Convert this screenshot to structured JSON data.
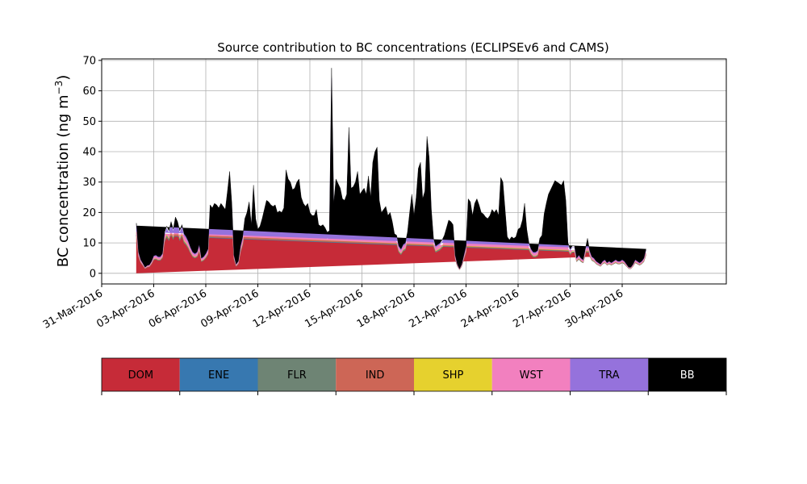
{
  "chart_data": {
    "type": "area",
    "stacked": true,
    "title": "Source contribution to BC concentrations (ECLIPSEv6 and CAMS)",
    "xlabel": "",
    "ylabel": "BC concentration (ng m",
    "ylabel_sup": "−3",
    "ylabel_close": ")",
    "xlim": [
      "2016-03-31",
      "2016-05-06"
    ],
    "ylim": [
      -3.5,
      70.5
    ],
    "y_ticks": [
      0,
      10,
      20,
      30,
      40,
      50,
      60,
      70
    ],
    "x_ticks": [
      {
        "date": "2016-03-31",
        "label": "31-Mar-2016"
      },
      {
        "date": "2016-04-03",
        "label": "03-Apr-2016"
      },
      {
        "date": "2016-04-06",
        "label": "06-Apr-2016"
      },
      {
        "date": "2016-04-09",
        "label": "09-Apr-2016"
      },
      {
        "date": "2016-04-12",
        "label": "12-Apr-2016"
      },
      {
        "date": "2016-04-15",
        "label": "15-Apr-2016"
      },
      {
        "date": "2016-04-18",
        "label": "18-Apr-2016"
      },
      {
        "date": "2016-04-21",
        "label": "21-Apr-2016"
      },
      {
        "date": "2016-04-24",
        "label": "24-Apr-2016"
      },
      {
        "date": "2016-04-27",
        "label": "27-Apr-2016"
      },
      {
        "date": "2016-04-30",
        "label": "30-Apr-2016"
      }
    ],
    "grid": true,
    "legend_position": "below",
    "x": [
      "2016-04-02 00:00",
      "2016-04-02 03:00",
      "2016-04-02 06:00",
      "2016-04-02 09:00",
      "2016-04-02 12:00",
      "2016-04-02 15:00",
      "2016-04-02 18:00",
      "2016-04-02 21:00",
      "2016-04-03 00:00",
      "2016-04-03 03:00",
      "2016-04-03 06:00",
      "2016-04-03 09:00",
      "2016-04-03 12:00",
      "2016-04-03 15:00",
      "2016-04-03 18:00",
      "2016-04-03 21:00",
      "2016-04-04 00:00",
      "2016-04-04 03:00",
      "2016-04-04 06:00",
      "2016-04-04 09:00",
      "2016-04-04 12:00",
      "2016-04-04 15:00",
      "2016-04-04 18:00",
      "2016-04-04 21:00",
      "2016-04-05 00:00",
      "2016-04-05 03:00",
      "2016-04-05 06:00",
      "2016-04-05 09:00",
      "2016-04-05 12:00",
      "2016-04-05 15:00",
      "2016-04-05 18:00",
      "2016-04-05 21:00",
      "2016-04-06 00:00",
      "2016-04-06 03:00",
      "2016-04-06 06:00",
      "2016-04-06 09:00",
      "2016-04-06 12:00",
      "2016-04-06 15:00",
      "2016-04-06 18:00",
      "2016-04-06 21:00",
      "2016-04-07 00:00",
      "2016-04-07 03:00",
      "2016-04-07 06:00",
      "2016-04-07 09:00",
      "2016-04-07 12:00",
      "2016-04-07 15:00",
      "2016-04-07 18:00",
      "2016-04-07 21:00",
      "2016-04-08 00:00",
      "2016-04-08 03:00",
      "2016-04-08 06:00",
      "2016-04-08 09:00",
      "2016-04-08 12:00",
      "2016-04-08 15:00",
      "2016-04-08 18:00",
      "2016-04-08 21:00",
      "2016-04-09 00:00",
      "2016-04-09 03:00",
      "2016-04-09 06:00",
      "2016-04-09 09:00",
      "2016-04-09 12:00",
      "2016-04-09 15:00",
      "2016-04-09 18:00",
      "2016-04-09 21:00",
      "2016-04-10 00:00",
      "2016-04-10 03:00",
      "2016-04-10 06:00",
      "2016-04-10 09:00",
      "2016-04-10 12:00",
      "2016-04-10 15:00",
      "2016-04-10 18:00",
      "2016-04-10 21:00",
      "2016-04-11 00:00",
      "2016-04-11 03:00",
      "2016-04-11 06:00",
      "2016-04-11 09:00",
      "2016-04-11 12:00",
      "2016-04-11 15:00",
      "2016-04-11 18:00",
      "2016-04-11 21:00",
      "2016-04-12 00:00",
      "2016-04-12 03:00",
      "2016-04-12 06:00",
      "2016-04-12 09:00",
      "2016-04-12 12:00",
      "2016-04-12 15:00",
      "2016-04-12 18:00",
      "2016-04-12 21:00",
      "2016-04-13 00:00",
      "2016-04-13 03:00",
      "2016-04-13 06:00",
      "2016-04-13 09:00",
      "2016-04-13 12:00",
      "2016-04-13 15:00",
      "2016-04-13 18:00",
      "2016-04-13 21:00",
      "2016-04-14 00:00",
      "2016-04-14 03:00",
      "2016-04-14 06:00",
      "2016-04-14 09:00",
      "2016-04-14 12:00",
      "2016-04-14 15:00",
      "2016-04-14 18:00",
      "2016-04-14 21:00",
      "2016-04-15 00:00",
      "2016-04-15 03:00",
      "2016-04-15 06:00",
      "2016-04-15 09:00",
      "2016-04-15 12:00",
      "2016-04-15 15:00",
      "2016-04-15 18:00",
      "2016-04-15 21:00",
      "2016-04-16 00:00",
      "2016-04-16 03:00",
      "2016-04-16 06:00",
      "2016-04-16 09:00",
      "2016-04-16 12:00",
      "2016-04-16 15:00",
      "2016-04-16 18:00",
      "2016-04-16 21:00",
      "2016-04-17 00:00",
      "2016-04-17 03:00",
      "2016-04-17 06:00",
      "2016-04-17 09:00",
      "2016-04-17 12:00",
      "2016-04-17 15:00",
      "2016-04-17 18:00",
      "2016-04-17 21:00",
      "2016-04-18 00:00",
      "2016-04-18 03:00",
      "2016-04-18 06:00",
      "2016-04-18 09:00",
      "2016-04-18 12:00",
      "2016-04-18 15:00",
      "2016-04-18 18:00",
      "2016-04-18 21:00",
      "2016-04-19 00:00",
      "2016-04-19 03:00",
      "2016-04-19 06:00",
      "2016-04-19 09:00",
      "2016-04-19 12:00",
      "2016-04-19 15:00",
      "2016-04-19 18:00",
      "2016-04-19 21:00",
      "2016-04-20 00:00",
      "2016-04-20 03:00",
      "2016-04-20 06:00",
      "2016-04-20 09:00",
      "2016-04-20 12:00",
      "2016-04-20 15:00",
      "2016-04-20 18:00",
      "2016-04-20 21:00",
      "2016-04-21 00:00",
      "2016-04-21 03:00",
      "2016-04-21 06:00",
      "2016-04-21 09:00",
      "2016-04-21 12:00",
      "2016-04-21 15:00",
      "2016-04-21 18:00",
      "2016-04-21 21:00",
      "2016-04-22 00:00",
      "2016-04-22 03:00",
      "2016-04-22 06:00",
      "2016-04-22 09:00",
      "2016-04-22 12:00",
      "2016-04-22 15:00",
      "2016-04-22 18:00",
      "2016-04-22 21:00",
      "2016-04-23 00:00",
      "2016-04-23 03:00",
      "2016-04-23 06:00",
      "2016-04-23 09:00",
      "2016-04-23 12:00",
      "2016-04-23 15:00",
      "2016-04-23 18:00",
      "2016-04-23 21:00",
      "2016-04-24 00:00",
      "2016-04-24 03:00",
      "2016-04-24 06:00",
      "2016-04-24 09:00",
      "2016-04-24 12:00",
      "2016-04-24 15:00",
      "2016-04-24 18:00",
      "2016-04-24 21:00",
      "2016-04-25 00:00",
      "2016-04-25 03:00",
      "2016-04-25 06:00",
      "2016-04-25 09:00",
      "2016-04-25 12:00",
      "2016-04-25 15:00",
      "2016-04-25 18:00",
      "2016-04-25 21:00",
      "2016-04-26 00:00",
      "2016-04-26 03:00",
      "2016-04-26 06:00",
      "2016-04-26 09:00",
      "2016-04-26 12:00",
      "2016-04-26 15:00",
      "2016-04-26 18:00",
      "2016-04-26 21:00",
      "2016-04-27 00:00",
      "2016-04-27 03:00",
      "2016-04-27 06:00",
      "2016-04-27 09:00",
      "2016-04-27 12:00",
      "2016-04-27 15:00",
      "2016-04-27 18:00",
      "2016-04-27 21:00",
      "2016-04-28 00:00",
      "2016-04-28 03:00",
      "2016-04-28 06:00",
      "2016-04-28 09:00",
      "2016-04-28 12:00",
      "2016-04-28 15:00",
      "2016-04-28 18:00",
      "2016-04-28 21:00",
      "2016-04-29 00:00",
      "2016-04-29 03:00",
      "2016-04-29 06:00",
      "2016-04-29 09:00",
      "2016-04-29 12:00",
      "2016-04-29 15:00",
      "2016-04-29 18:00",
      "2016-04-29 21:00",
      "2016-04-30 00:00",
      "2016-04-30 03:00",
      "2016-04-30 06:00",
      "2016-04-30 09:00",
      "2016-04-30 12:00",
      "2016-04-30 15:00",
      "2016-04-30 18:00",
      "2016-04-30 21:00",
      "2016-05-01 00:00",
      "2016-05-01 03:00",
      "2016-05-01 06:00",
      "2016-05-01 09:00",
      "2016-05-01 12:00",
      "2016-05-01 15:00",
      "2016-05-01 18:00",
      "2016-05-01 21:00",
      "2016-05-02 00:00",
      "2016-05-02 03:00"
    ],
    "total": [
      16.5,
      7.0,
      4.5,
      3.3,
      2.0,
      2.6,
      2.8,
      4.0,
      5.8,
      6.0,
      5.5,
      5.5,
      6.5,
      13.5,
      15.5,
      14.0,
      17.0,
      14.5,
      18.5,
      17.0,
      14.0,
      16.0,
      13.0,
      12.0,
      10.5,
      8.5,
      7.0,
      6.5,
      7.0,
      9.5,
      5.0,
      5.5,
      6.5,
      8.0,
      22.5,
      21.5,
      23.0,
      22.5,
      21.5,
      23.0,
      22.0,
      21.0,
      27.0,
      33.5,
      23.0,
      6.0,
      3.0,
      4.0,
      9.0,
      12.0,
      18.0,
      20.0,
      23.5,
      16.0,
      29.0,
      18.0,
      14.5,
      15.5,
      18.0,
      21.0,
      24.0,
      23.5,
      22.5,
      22.0,
      22.5,
      20.0,
      20.5,
      20.0,
      21.5,
      34.0,
      31.0,
      30.0,
      27.5,
      28.0,
      30.0,
      31.0,
      25.0,
      23.0,
      22.0,
      23.0,
      20.0,
      19.0,
      19.0,
      21.0,
      16.0,
      15.5,
      16.0,
      15.0,
      13.5,
      14.0,
      67.5,
      23.0,
      31.0,
      29.5,
      28.0,
      24.5,
      24.0,
      26.0,
      48.0,
      28.0,
      28.5,
      30.0,
      33.5,
      26.0,
      27.0,
      28.0,
      26.0,
      32.0,
      25.0,
      36.5,
      40.0,
      41.5,
      24.0,
      20.0,
      21.0,
      22.0,
      19.0,
      20.0,
      17.0,
      13.0,
      12.5,
      9.0,
      8.0,
      9.5,
      10.0,
      13.5,
      20.0,
      26.0,
      19.0,
      25.0,
      34.5,
      36.5,
      24.5,
      27.0,
      45.0,
      38.0,
      21.0,
      11.5,
      9.0,
      9.5,
      10.0,
      11.0,
      12.5,
      15.0,
      17.5,
      17.0,
      16.0,
      6.0,
      3.0,
      1.5,
      3.0,
      6.0,
      9.0,
      24.5,
      23.5,
      19.0,
      23.0,
      24.5,
      22.5,
      20.0,
      19.5,
      18.5,
      18.0,
      19.0,
      21.0,
      20.0,
      21.0,
      19.0,
      31.5,
      30.0,
      21.0,
      12.0,
      11.0,
      12.0,
      11.5,
      12.0,
      14.5,
      15.0,
      17.5,
      23.0,
      14.5,
      10.0,
      8.0,
      7.0,
      7.0,
      7.5,
      11.5,
      12.5,
      19.5,
      23.0,
      26.0,
      27.5,
      29.0,
      30.5,
      30.0,
      29.5,
      29.0,
      30.5,
      24.0,
      10.0,
      8.0,
      9.0,
      9.0,
      5.0,
      6.0,
      5.0,
      4.5,
      8.0,
      11.5,
      7.5,
      5.5,
      5.0,
      4.0,
      3.5,
      3.0,
      4.0,
      4.5,
      3.5,
      4.0,
      3.5,
      4.0,
      4.5,
      4.0,
      4.0,
      4.5,
      4.0,
      3.0,
      2.0,
      2.0,
      3.0,
      4.5,
      4.0,
      3.5,
      4.0,
      5.0,
      8.0
    ],
    "series": [
      {
        "name": "DOM",
        "color": "#c62b38",
        "fraction": 0.76
      },
      {
        "name": "ENE",
        "color": "#3778b0",
        "fraction": 0.01
      },
      {
        "name": "FLR",
        "color": "#6e8474",
        "fraction": 0.0
      },
      {
        "name": "IND",
        "color": "#cd6656",
        "fraction": 0.04
      },
      {
        "name": "SHP",
        "color": "#e6d12e",
        "fraction": 0.0
      },
      {
        "name": "WST",
        "color": "#f280bf",
        "fraction": 0.02
      },
      {
        "name": "TRA",
        "color": "#9572dc",
        "fraction": 0.12
      },
      {
        "name": "BB",
        "color": "#000000",
        "fraction": null
      }
    ]
  },
  "legend": {
    "items": [
      {
        "label": "DOM",
        "color": "#c62b38",
        "text_color": "#000000"
      },
      {
        "label": "ENE",
        "color": "#3778b0",
        "text_color": "#000000"
      },
      {
        "label": "FLR",
        "color": "#6e8474",
        "text_color": "#000000"
      },
      {
        "label": "IND",
        "color": "#cd6656",
        "text_color": "#000000"
      },
      {
        "label": "SHP",
        "color": "#e6d12e",
        "text_color": "#000000"
      },
      {
        "label": "WST",
        "color": "#f280bf",
        "text_color": "#000000"
      },
      {
        "label": "TRA",
        "color": "#9572dc",
        "text_color": "#000000"
      },
      {
        "label": "BB",
        "color": "#000000",
        "text_color": "#ffffff"
      }
    ]
  }
}
